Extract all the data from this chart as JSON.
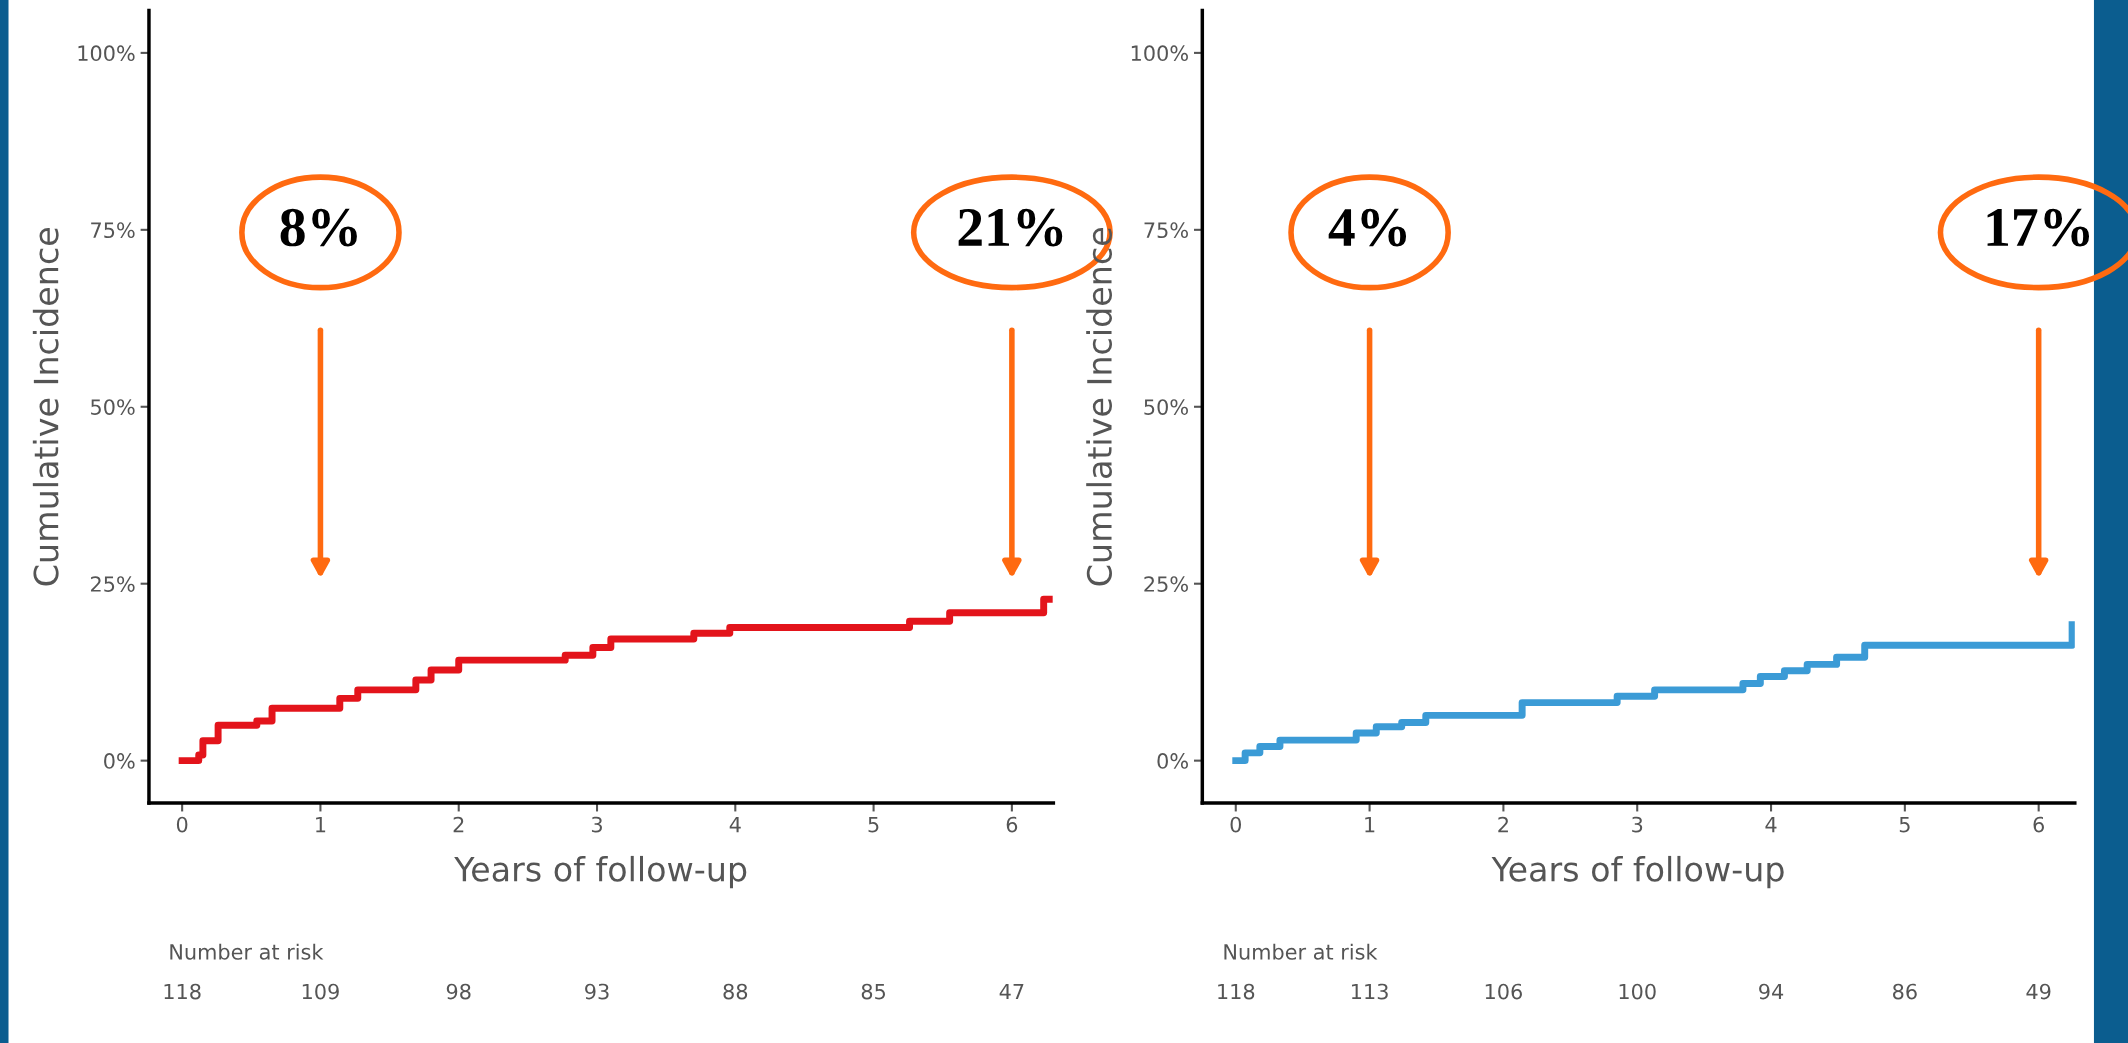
{
  "chart_data": [
    {
      "type": "step",
      "xlabel": "Years of follow-up",
      "ylabel": "Cumulative Incidence",
      "xlim": [
        -0.24,
        6.3
      ],
      "ylim": [
        -6,
        106
      ],
      "xticks": [
        0,
        1,
        2,
        3,
        4,
        5,
        6
      ],
      "yticks": [
        {
          "value": 0,
          "label": "0%"
        },
        {
          "value": 25,
          "label": "25%"
        },
        {
          "value": 50,
          "label": "50%"
        },
        {
          "value": 75,
          "label": "75%"
        },
        {
          "value": 100,
          "label": "100%"
        }
      ],
      "grid": false,
      "legend": false,
      "series": [
        {
          "color": "#e3141b",
          "x": [
            0,
            0.12,
            0.15,
            0.26,
            0.54,
            0.65,
            1.14,
            1.27,
            1.69,
            1.8,
            2.0,
            2.77,
            2.97,
            3.1,
            3.7,
            3.96,
            5.26,
            5.55,
            6.23,
            6.27
          ],
          "values": [
            0,
            0.8,
            2.8,
            5,
            5.6,
            7.4,
            8.8,
            10,
            11.4,
            12.8,
            14.2,
            14.9,
            16,
            17.2,
            18,
            18.8,
            19.7,
            20.9,
            22.8,
            22.8
          ]
        }
      ],
      "annotations": [
        "8%",
        "21%",
        "Number at risk",
        "118",
        "109",
        "98",
        "93",
        "88",
        "85",
        "47"
      ]
    },
    {
      "type": "step",
      "xlabel": "Years of follow-up",
      "ylabel": "Cumulative Incidence",
      "xlim": [
        -0.25,
        6.27
      ],
      "ylim": [
        -6,
        106
      ],
      "xticks": [
        0,
        1,
        2,
        3,
        4,
        5,
        6
      ],
      "yticks": [
        {
          "value": 0,
          "label": "0%"
        },
        {
          "value": 25,
          "label": "25%"
        },
        {
          "value": 50,
          "label": "50%"
        },
        {
          "value": 75,
          "label": "75%"
        },
        {
          "value": 100,
          "label": "100%"
        }
      ],
      "grid": false,
      "legend": false,
      "series": [
        {
          "color": "#3b9bd6",
          "x": [
            0,
            0.07,
            0.18,
            0.33,
            0.9,
            1.05,
            1.24,
            1.42,
            2.14,
            2.85,
            3.13,
            3.79,
            3.92,
            4.1,
            4.27,
            4.49,
            4.7,
            6.25
          ],
          "values": [
            0,
            1.1,
            2,
            2.9,
            3.9,
            4.8,
            5.4,
            6.4,
            8.2,
            9.1,
            10,
            10.9,
            11.9,
            12.7,
            13.6,
            14.6,
            16.3,
            19.2
          ]
        }
      ],
      "annotations": [
        "4%",
        "17%",
        "Number at risk",
        "118",
        "113",
        "106",
        "100",
        "94",
        "86",
        "49"
      ]
    }
  ]
}
